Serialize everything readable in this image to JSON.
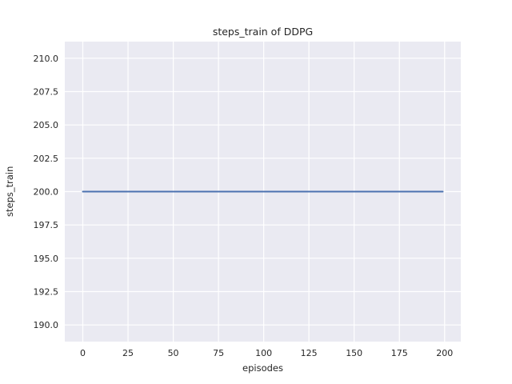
{
  "chart_data": {
    "type": "line",
    "title": "steps_train of DDPG",
    "xlabel": "episodes",
    "ylabel": "steps_train",
    "xlim": [
      -9.95,
      208.95
    ],
    "ylim": [
      188.75,
      211.25
    ],
    "x_tick_values": [
      0,
      25,
      50,
      75,
      100,
      125,
      150,
      175,
      200
    ],
    "x_tick_labels": [
      "0",
      "25",
      "50",
      "75",
      "100",
      "125",
      "150",
      "175",
      "200"
    ],
    "y_tick_values": [
      190.0,
      192.5,
      195.0,
      197.5,
      200.0,
      202.5,
      205.0,
      207.5,
      210.0
    ],
    "y_tick_labels": [
      "190.0",
      "192.5",
      "195.0",
      "197.5",
      "200.0",
      "202.5",
      "205.0",
      "207.5",
      "210.0"
    ],
    "grid": true,
    "legend_position": "none",
    "colors": {
      "plot_background": "#eaeaf2",
      "grid_line": "#ffffff",
      "text": "#262626",
      "figure_background": "#ffffff"
    },
    "series": [
      {
        "name": "steps_train",
        "color": "#4c72b0",
        "description": "constant value 200 across all episodes",
        "x": [
          0,
          199
        ],
        "y": [
          200,
          200
        ]
      }
    ]
  }
}
